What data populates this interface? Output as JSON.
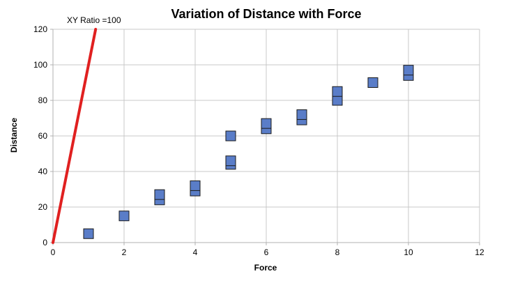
{
  "chart_data": {
    "type": "scatter",
    "title": "Variation of Distance with Force",
    "xlabel": "Force",
    "ylabel": "Distance",
    "xlim": [
      0,
      12
    ],
    "ylim": [
      0,
      120
    ],
    "xticks": [
      "0",
      "2",
      "4",
      "6",
      "8",
      "10",
      "12"
    ],
    "yticks": [
      "0",
      "20",
      "40",
      "60",
      "80",
      "100",
      "120"
    ],
    "grid": true,
    "series": [
      {
        "marker": "square",
        "color": "#5a7dc8",
        "x": [
          1,
          2,
          3,
          3,
          4,
          4,
          5,
          5,
          5,
          6,
          6,
          7,
          7,
          8,
          8,
          9,
          10,
          10
        ],
        "y": [
          5,
          15,
          24,
          27,
          29,
          32,
          44,
          46,
          60,
          64,
          67,
          69,
          72,
          80,
          85,
          90,
          94,
          97
        ]
      }
    ],
    "reference_line": {
      "label": "XY Ratio =100",
      "color": "#e02020",
      "x": [
        0,
        1.2
      ],
      "y": [
        0,
        120
      ]
    }
  }
}
